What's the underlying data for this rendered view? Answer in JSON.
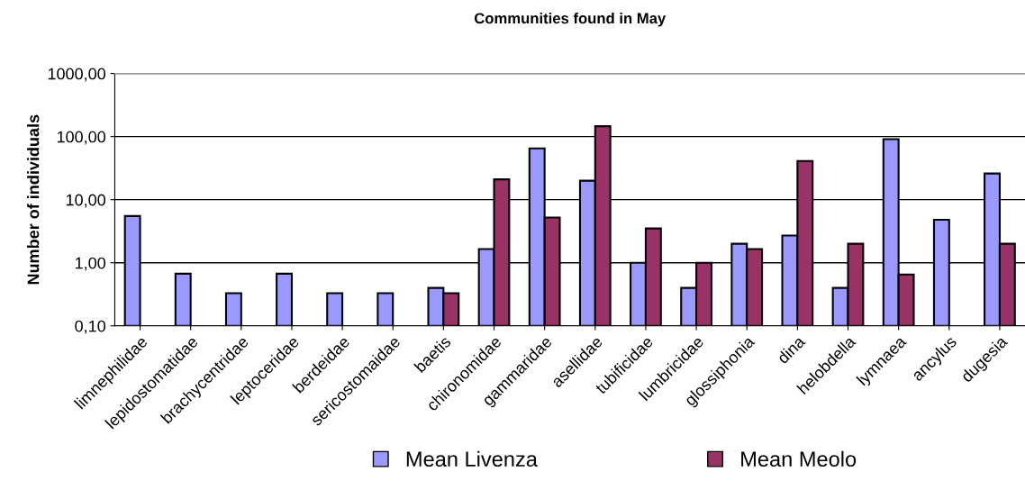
{
  "chart_data": {
    "type": "bar",
    "title": "Communities found in May",
    "ylabel": "Number of individuals",
    "categories": [
      "limnephilidae",
      "lepidostomatidae",
      "brachycentridae",
      "leptoceridae",
      "berdeidae",
      "sericostomaidae",
      "baetis",
      "chironomidae",
      "gammaridae",
      "asellidae",
      "tubificidae",
      "lumbricidae",
      "glossiphonia",
      "dina",
      "helobdella",
      "lymnaea",
      "ancylus",
      "dugesia"
    ],
    "series": [
      {
        "name": "Mean Livenza",
        "color": "#9999ff",
        "values": [
          5.5,
          0.67,
          0.33,
          0.67,
          0.33,
          0.33,
          0.4,
          1.65,
          65,
          20,
          1.0,
          0.4,
          2.0,
          2.7,
          0.4,
          91,
          4.8,
          26
        ]
      },
      {
        "name": "Mean Meolo",
        "color": "#993366",
        "values": [
          null,
          null,
          null,
          null,
          null,
          null,
          0.33,
          21,
          5.2,
          146,
          3.5,
          1.0,
          1.65,
          41,
          2.0,
          0.65,
          null,
          2.0
        ]
      }
    ],
    "log": "y",
    "ylim": [
      0.1,
      1000
    ],
    "yticks": [
      {
        "value": 0.1,
        "label": "0,10"
      },
      {
        "value": 1,
        "label": "1,00"
      },
      {
        "value": 10,
        "label": "10,00"
      },
      {
        "value": 100,
        "label": "100,00"
      },
      {
        "value": 1000,
        "label": "1000,00"
      }
    ],
    "grid": "y",
    "legend": "bottom"
  }
}
